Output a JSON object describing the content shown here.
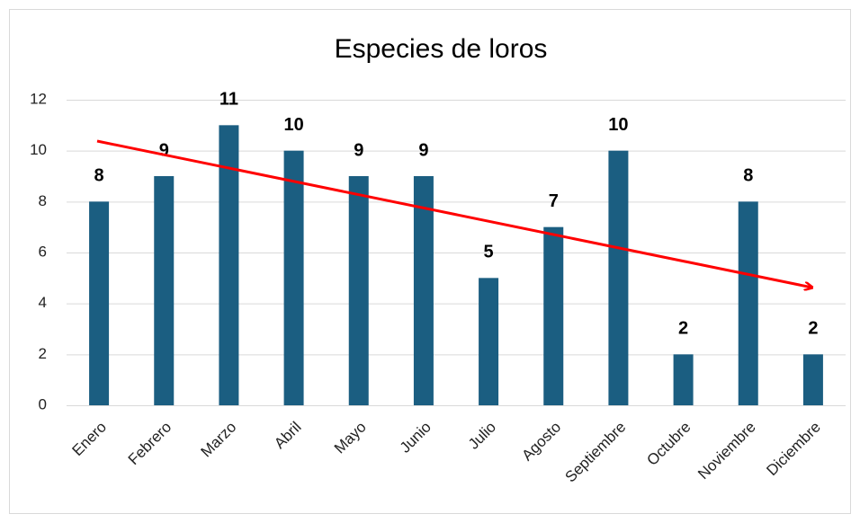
{
  "chart_data": {
    "type": "bar",
    "title": "Especies de loros",
    "categories": [
      "Enero",
      "Febrero",
      "Marzo",
      "Abril",
      "Mayo",
      "Junio",
      "Julio",
      "Agosto",
      "Septiembre",
      "Octubre",
      "Noviembre",
      "Diciembre"
    ],
    "values": [
      8,
      9,
      11,
      10,
      9,
      9,
      5,
      7,
      10,
      2,
      8,
      2
    ],
    "color": "#1b5e81",
    "ylim": [
      0,
      12
    ],
    "yticks": [
      0,
      2,
      4,
      6,
      8,
      10,
      12
    ],
    "grid": true
  }
}
